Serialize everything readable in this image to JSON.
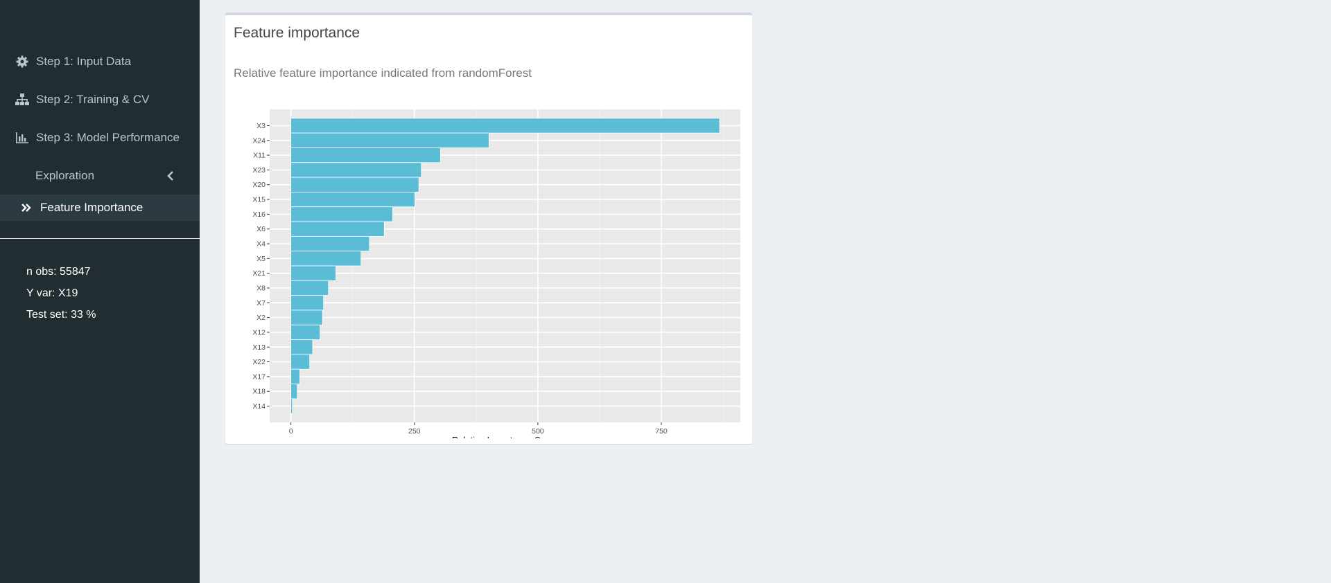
{
  "sidebar": {
    "items": [
      {
        "label": "Step 1: Input Data",
        "icon": "gear-icon"
      },
      {
        "label": "Step 2: Training & CV",
        "icon": "sitemap-icon"
      },
      {
        "label": "Step 3: Model Performance",
        "icon": "bar-chart-icon"
      },
      {
        "label": "Exploration",
        "icon": "chevron-left-icon"
      },
      {
        "label": "Feature Importance",
        "icon": "double-chevron-right-icon"
      }
    ],
    "info": {
      "n_obs": "n obs: 55847",
      "y_var": "Y var: X19",
      "test_set": "Test set: 33 %"
    }
  },
  "panel": {
    "title": "Feature importance",
    "subtitle": "Relative feature importance indicated from randomForest"
  },
  "colors": {
    "sidebar_bg": "#222d32",
    "bar_fill": "#5bbcd6",
    "panel_bg": "#e9e9e9"
  },
  "chart_data": {
    "type": "bar",
    "orientation": "horizontal",
    "categories": [
      "X3",
      "X24",
      "X11",
      "X23",
      "X20",
      "X15",
      "X16",
      "X6",
      "X4",
      "X5",
      "X21",
      "X8",
      "X7",
      "X2",
      "X12",
      "X13",
      "X22",
      "X17",
      "X18",
      "X14"
    ],
    "values": [
      868,
      401,
      303,
      264,
      259,
      251,
      206,
      189,
      159,
      142,
      91,
      76,
      66,
      64,
      59,
      44,
      38,
      18,
      13,
      3
    ],
    "xlabel": "Relative Importance Score",
    "ylabel": "",
    "xlim": [
      -43,
      910
    ],
    "xticks": [
      0,
      250,
      500,
      750
    ],
    "xtick_labels": [
      "0",
      "250",
      "500",
      "750"
    ],
    "grid": true
  }
}
